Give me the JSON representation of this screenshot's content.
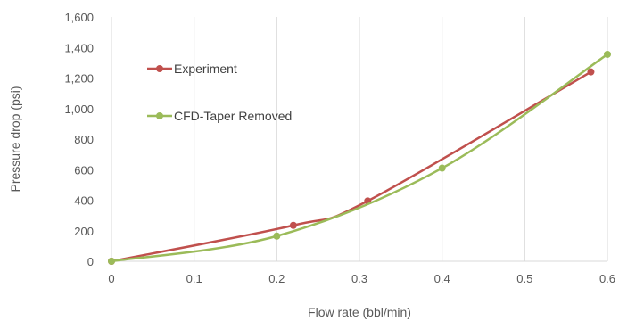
{
  "chart_data": {
    "type": "line",
    "xlabel": "Flow rate (bbl/min)",
    "ylabel": "Pressure drop (psi)",
    "xlim": [
      0,
      0.6
    ],
    "ylim": [
      0,
      1600
    ],
    "x_ticks": [
      "0",
      "0.1",
      "0.2",
      "0.3",
      "0.4",
      "0.5",
      "0.6"
    ],
    "y_ticks": [
      "0",
      "200",
      "400",
      "600",
      "800",
      "1,000",
      "1,200",
      "1,400",
      "1,600"
    ],
    "grid": "vertical",
    "legend_position": "top-left",
    "smoothed": true,
    "series": [
      {
        "name": "Experiment",
        "color": "#c0504d",
        "x": [
          0,
          0.22,
          0.31,
          0.58
        ],
        "y": [
          0,
          235,
          395,
          1240
        ]
      },
      {
        "name": "CFD-Taper Removed",
        "color": "#9bbb59",
        "x": [
          0,
          0.2,
          0.4,
          0.6
        ],
        "y": [
          0,
          165,
          610,
          1355
        ]
      }
    ]
  }
}
